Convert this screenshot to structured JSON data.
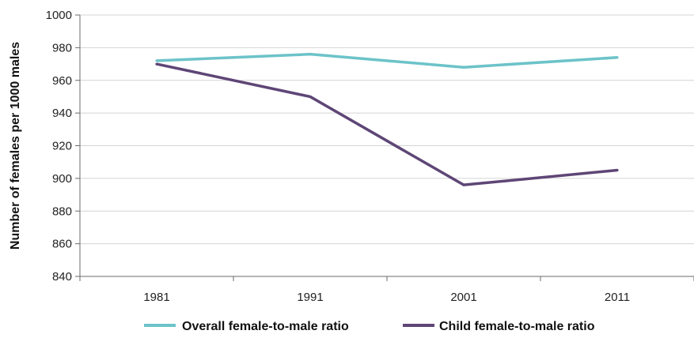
{
  "chart_data": {
    "type": "line",
    "title": "",
    "xlabel": "",
    "ylabel": "Number of females per 1000 males",
    "categories": [
      "1981",
      "1991",
      "2001",
      "2011"
    ],
    "y_ticks": [
      "840",
      "860",
      "880",
      "900",
      "920",
      "940",
      "960",
      "980",
      "1000"
    ],
    "ylim": [
      840,
      1000
    ],
    "grid": true,
    "legend_position": "bottom",
    "series": [
      {
        "name": "Overall female-to-male ratio",
        "color": "#6cc3c9",
        "values": [
          972,
          976,
          968,
          974
        ]
      },
      {
        "name": "Child female-to-male ratio",
        "color": "#5e4676",
        "values": [
          970,
          950,
          896,
          905
        ]
      }
    ]
  }
}
